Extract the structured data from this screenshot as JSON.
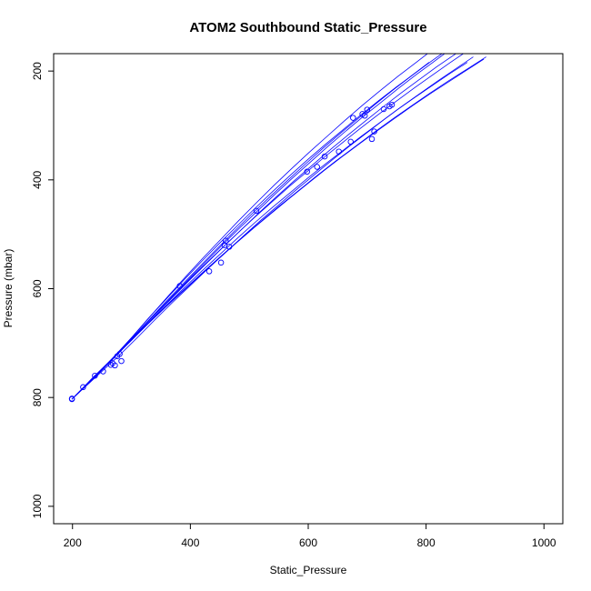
{
  "chart_data": {
    "type": "line",
    "title": "ATOM2 Southbound Static_Pressure",
    "xlabel": "Static_Pressure",
    "ylabel": "Pressure (mbar)",
    "xlim": [
      200,
      1000
    ],
    "ylim": [
      1000,
      200
    ],
    "y_reversed": true,
    "xticks": [
      200,
      400,
      600,
      800,
      1000
    ],
    "yticks": [
      200,
      400,
      600,
      800,
      1000
    ],
    "grid": false,
    "colors": {
      "series": "#0000ff",
      "axis": "#000000",
      "background": "#ffffff"
    },
    "series": [
      {
        "x": [
          199,
          238,
          268,
          300,
          330,
          360,
          390,
          420,
          450,
          480,
          510,
          540,
          570,
          600,
          630,
          660,
          690,
          720,
          750,
          780,
          810,
          840,
          870
        ],
        "y": [
          803,
          760,
          730,
          693,
          658,
          625,
          592,
          560,
          529,
          498,
          468,
          439,
          410,
          383,
          356,
          330,
          304,
          279,
          255,
          231,
          208,
          185,
          163
        ]
      },
      {
        "x": [
          199,
          240,
          270,
          300,
          330,
          360,
          390,
          420,
          450,
          480,
          510,
          540,
          570,
          600,
          630,
          660,
          690,
          720,
          750,
          780,
          810,
          840
        ],
        "y": [
          803,
          758,
          726,
          690,
          653,
          618,
          583,
          549,
          516,
          484,
          452,
          421,
          391,
          362,
          334,
          307,
          280,
          254,
          229,
          205,
          181,
          158
        ]
      },
      {
        "x": [
          199,
          245,
          275,
          300,
          330,
          360,
          390,
          420,
          450,
          480,
          510,
          540,
          570,
          600,
          630,
          660,
          690,
          720,
          750,
          780,
          810,
          840,
          870
        ],
        "y": [
          803,
          755,
          721,
          695,
          662,
          630,
          598,
          567,
          537,
          507,
          478,
          450,
          423,
          396,
          370,
          345,
          320,
          296,
          272,
          249,
          227,
          205,
          184
        ]
      },
      {
        "x": [
          199,
          235,
          265,
          295,
          325,
          355,
          385,
          415,
          445,
          475,
          505,
          535,
          565,
          595,
          625,
          655,
          685,
          715,
          745,
          775,
          805
        ],
        "y": [
          803,
          763,
          731,
          698,
          663,
          628,
          594,
          560,
          527,
          494,
          462,
          431,
          401,
          371,
          342,
          314,
          287,
          260,
          234,
          209,
          184
        ]
      },
      {
        "x": [
          199,
          250,
          280,
          310,
          340,
          370,
          400,
          430,
          460,
          490,
          520,
          550,
          580,
          610,
          640,
          670,
          700,
          730,
          760,
          790,
          820,
          850,
          880
        ],
        "y": [
          803,
          752,
          722,
          690,
          657,
          625,
          594,
          563,
          533,
          503,
          474,
          446,
          418,
          391,
          364,
          338,
          313,
          288,
          264,
          241,
          218,
          196,
          174
        ]
      },
      {
        "x": [
          199,
          242,
          272,
          302,
          332,
          362,
          392,
          422,
          452,
          482,
          512,
          542,
          572,
          602,
          632,
          662,
          692,
          722,
          752,
          782,
          812
        ],
        "y": [
          803,
          757,
          723,
          688,
          651,
          614,
          578,
          543,
          509,
          475,
          442,
          410,
          379,
          349,
          320,
          291,
          263,
          236,
          210,
          185,
          160
        ]
      },
      {
        "x": [
          199,
          248,
          278,
          308,
          338,
          368,
          398,
          428,
          458,
          488,
          518,
          548,
          578,
          608,
          638,
          668,
          698,
          728,
          758,
          788,
          818,
          848,
          878
        ],
        "y": [
          803,
          752,
          719,
          686,
          652,
          618,
          585,
          553,
          521,
          490,
          459,
          429,
          400,
          372,
          344,
          317,
          291,
          265,
          240,
          216,
          192,
          170,
          148
        ]
      },
      {
        "x": [
          199,
          230,
          262,
          294,
          326,
          358,
          390,
          422,
          454,
          486,
          518,
          550,
          582,
          614,
          646,
          678,
          710,
          742,
          774,
          806,
          838,
          870,
          902
        ],
        "y": [
          803,
          769,
          735,
          700,
          666,
          633,
          601,
          569,
          538,
          508,
          478,
          449,
          421,
          393,
          366,
          340,
          314,
          289,
          265,
          241,
          218,
          196,
          174
        ]
      },
      {
        "x": [
          199,
          244,
          274,
          304,
          334,
          364,
          394,
          424,
          454,
          484,
          514,
          544,
          574,
          604,
          634,
          664,
          694,
          724,
          754,
          784,
          814,
          844
        ],
        "y": [
          803,
          756,
          722,
          689,
          654,
          620,
          586,
          553,
          520,
          488,
          457,
          426,
          396,
          367,
          338,
          310,
          283,
          257,
          231,
          206,
          182,
          158
        ]
      },
      {
        "x": [
          199,
          238,
          268,
          298,
          328,
          358,
          388,
          418,
          448,
          478,
          508,
          538,
          568,
          598,
          628,
          658,
          688,
          718,
          748,
          778,
          808,
          838,
          868,
          898
        ],
        "y": [
          803,
          761,
          729,
          697,
          665,
          634,
          604,
          574,
          545,
          516,
          488,
          461,
          434,
          408,
          382,
          357,
          333,
          309,
          286,
          263,
          241,
          220,
          199,
          178
        ]
      }
    ],
    "scatter_points": {
      "x": [
        199,
        199,
        218,
        238,
        252,
        265,
        268,
        272,
        276,
        280,
        283,
        382,
        432,
        452,
        458,
        460,
        466,
        512,
        598,
        615,
        628,
        652,
        672,
        676,
        692,
        696,
        700,
        708,
        712,
        728,
        738,
        742
      ],
      "y": [
        803,
        802,
        781,
        760,
        752,
        740,
        737,
        741,
        724,
        720,
        733,
        595,
        568,
        552,
        520,
        512,
        523,
        457,
        385,
        376,
        357,
        348,
        330,
        286,
        279,
        282,
        271,
        325,
        311,
        270,
        265,
        262
      ]
    }
  }
}
